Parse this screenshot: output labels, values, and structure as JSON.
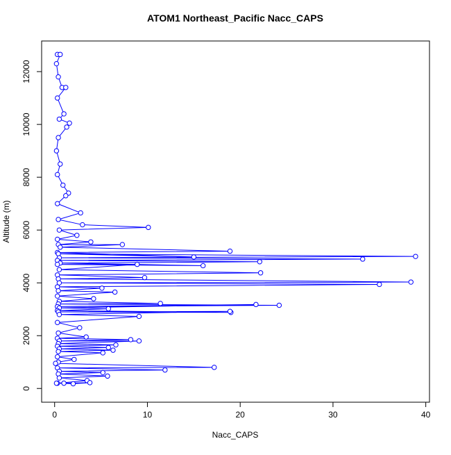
{
  "chart_data": {
    "type": "scatter",
    "title": "ATOM1 Northeast_Pacific Nacc_CAPS",
    "x_label": "Nacc_CAPS",
    "y_label": "Altitude (m)",
    "color": "#0000ff",
    "lines": true,
    "xlim": [
      -1.4,
      40.4
    ],
    "ylim": [
      -520,
      13160
    ],
    "xticks": [
      0,
      10,
      20,
      30,
      40
    ],
    "yticks": [
      0,
      2000,
      4000,
      6000,
      8000,
      10000,
      12000
    ],
    "x": [
      0.3,
      0.6,
      0.2,
      0.4,
      0.8,
      1.2,
      0.3,
      1.0,
      0.5,
      1.6,
      1.3,
      0.4,
      0.2,
      0.6,
      0.3,
      0.9,
      1.5,
      1.2,
      0.3,
      2.8,
      0.4,
      3.0,
      10.1,
      0.5,
      2.4,
      0.3,
      3.9,
      0.4,
      7.3,
      0.6,
      18.9,
      0.3,
      15.0,
      0.4,
      38.9,
      0.5,
      33.2,
      0.3,
      22.1,
      0.6,
      16.0,
      0.3,
      8.9,
      0.5,
      22.2,
      0.3,
      9.7,
      0.4,
      38.4,
      0.5,
      35.0,
      0.3,
      5.1,
      0.4,
      6.5,
      0.3,
      4.2,
      0.5,
      11.4,
      0.4,
      24.2,
      0.3,
      21.7,
      0.5,
      5.8,
      0.3,
      19.0,
      0.4,
      18.9,
      0.5,
      9.1,
      0.3,
      2.7,
      0.4,
      3.4,
      0.3,
      8.2,
      0.5,
      9.1,
      0.4,
      6.6,
      0.3,
      5.8,
      0.5,
      6.3,
      0.4,
      5.2,
      0.3,
      2.1,
      0.4,
      0.1,
      17.2,
      0.3,
      11.9,
      0.5,
      5.2,
      0.4,
      5.7,
      0.5,
      3.5,
      0.3,
      2.0,
      3.8,
      1.0,
      0.2
    ],
    "y": [
      12650,
      12650,
      12300,
      11800,
      11400,
      11400,
      11000,
      10400,
      10200,
      10050,
      9900,
      9500,
      9000,
      8500,
      8100,
      7700,
      7400,
      7300,
      7000,
      6650,
      6400,
      6200,
      6100,
      6000,
      5800,
      5650,
      5550,
      5450,
      5450,
      5350,
      5200,
      5150,
      4980,
      5100,
      5000,
      4950,
      4900,
      4850,
      4800,
      4750,
      4650,
      4700,
      4700,
      4500,
      4380,
      4300,
      4200,
      4150,
      4030,
      4000,
      3940,
      3850,
      3800,
      3700,
      3650,
      3500,
      3400,
      3300,
      3220,
      3200,
      3150,
      3100,
      3180,
      3050,
      3020,
      2950,
      2880,
      2900,
      2920,
      2800,
      2730,
      2500,
      2300,
      2100,
      1950,
      1900,
      1850,
      1800,
      1800,
      1700,
      1650,
      1600,
      1550,
      1500,
      1450,
      1400,
      1350,
      1200,
      1100,
      1000,
      950,
      800,
      780,
      700,
      650,
      600,
      550,
      470,
      400,
      300,
      200,
      180,
      220,
      200,
      200
    ]
  }
}
